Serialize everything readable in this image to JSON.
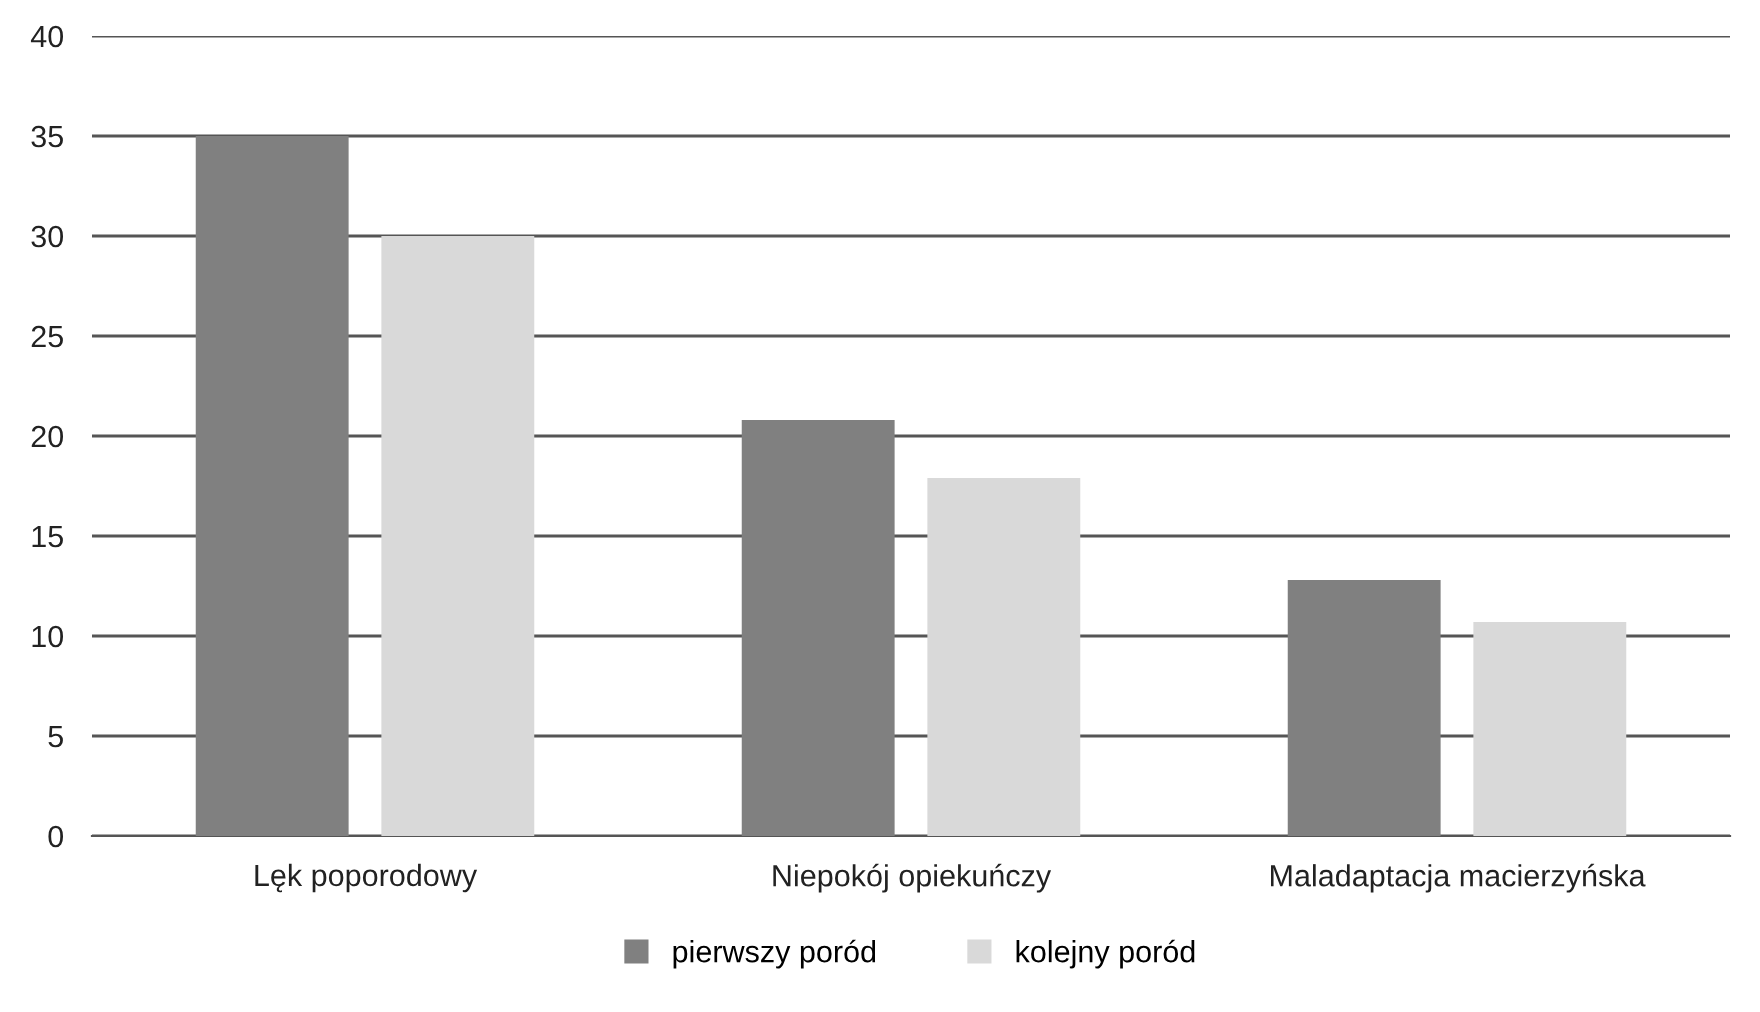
{
  "chart_data": {
    "type": "bar",
    "categories": [
      "Lęk poporodowy",
      "Niepokój opiekuńczy",
      "Maladaptacja macierzyńska"
    ],
    "series": [
      {
        "name": "pierwszy poród",
        "color": "#808080",
        "values": [
          35,
          20.8,
          12.8
        ]
      },
      {
        "name": "kolejny poród",
        "color": "#d9d9d9",
        "values": [
          30,
          17.9,
          10.7
        ]
      }
    ],
    "ylim": [
      0,
      40
    ],
    "yticks": [
      0,
      5,
      10,
      15,
      20,
      25,
      30,
      35,
      40
    ],
    "grid": "y",
    "legend": "bottom"
  }
}
